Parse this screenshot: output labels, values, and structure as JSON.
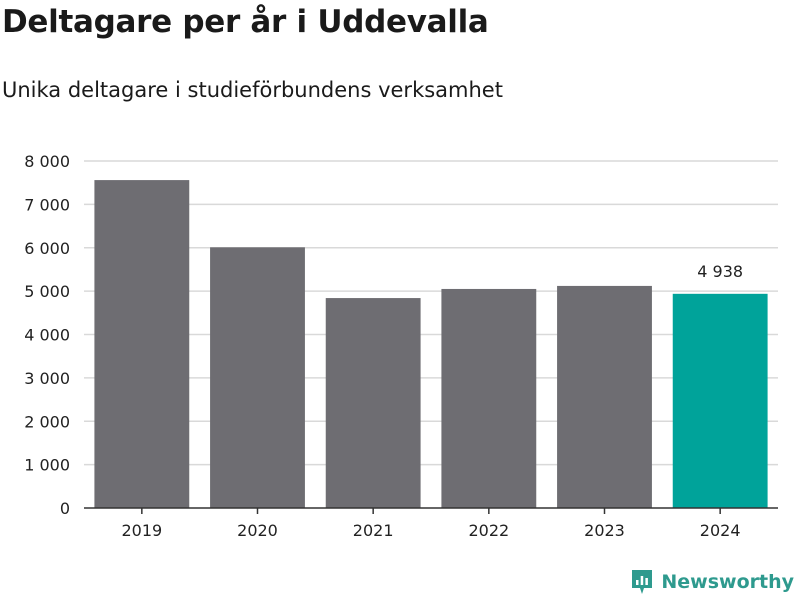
{
  "title": "Deltagare per år i Uddevalla",
  "subtitle": "Unika deltagare i studieförbundens verksamhet",
  "brand": {
    "name": "Newsworthy",
    "icon": "newsworthy-logo-icon"
  },
  "colors": {
    "bar": "#6e6d72",
    "highlight": "#00a39a",
    "grid": "#d9d9d9",
    "axis": "#333333",
    "brand": "#2e9a8e"
  },
  "chart_data": {
    "type": "bar",
    "title": "Deltagare per år i Uddevalla",
    "subtitle": "Unika deltagare i studieförbundens verksamhet",
    "xlabel": "",
    "ylabel": "",
    "categories": [
      "2019",
      "2020",
      "2021",
      "2022",
      "2023",
      "2024"
    ],
    "values": [
      7560,
      6010,
      4840,
      5050,
      5120,
      4938
    ],
    "highlight_index": 5,
    "data_labels": [
      {
        "index": 5,
        "text": "4 938"
      }
    ],
    "ylim": [
      0,
      8000
    ],
    "yticks": [
      0,
      1000,
      2000,
      3000,
      4000,
      5000,
      6000,
      7000,
      8000
    ],
    "ytick_labels": [
      "0",
      "1 000",
      "2 000",
      "3 000",
      "4 000",
      "5 000",
      "6 000",
      "7 000",
      "8 000"
    ],
    "grid": true,
    "legend": "none"
  }
}
